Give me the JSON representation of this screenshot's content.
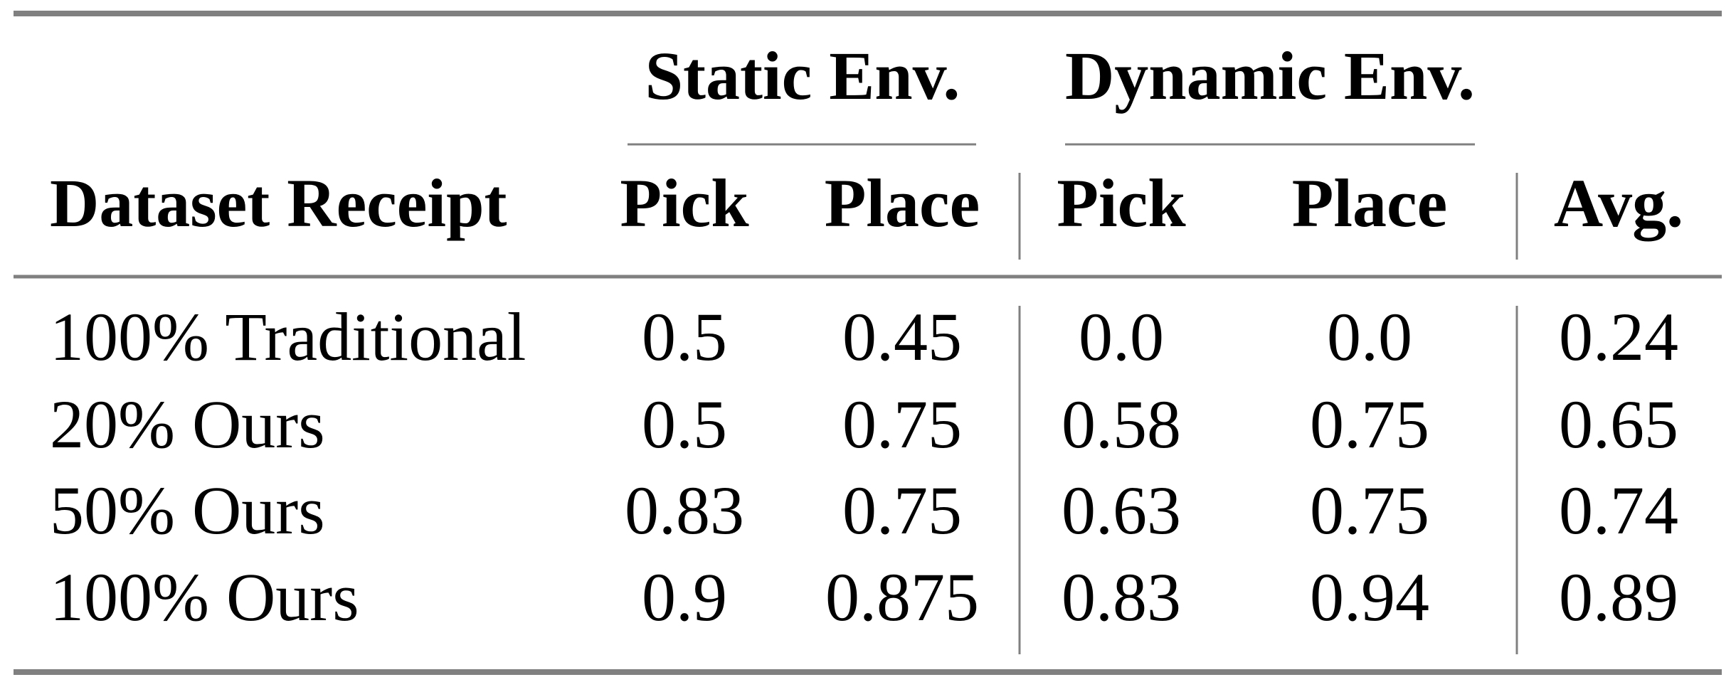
{
  "table": {
    "groups": [
      "Static Env.",
      "Dynamic Env."
    ],
    "columns": [
      "Dataset Receipt",
      "Pick",
      "Place",
      "Pick",
      "Place",
      "Avg."
    ],
    "rows": [
      [
        "100% Traditional",
        "0.5",
        "0.45",
        "0.0",
        "0.0",
        "0.24"
      ],
      [
        "20% Ours",
        "0.5",
        "0.75",
        "0.58",
        "0.75",
        "0.65"
      ],
      [
        "50% Ours",
        "0.83",
        "0.75",
        "0.63",
        "0.75",
        "0.74"
      ],
      [
        "100% Ours",
        "0.9",
        "0.875",
        "0.83",
        "0.94",
        "0.89"
      ]
    ]
  }
}
